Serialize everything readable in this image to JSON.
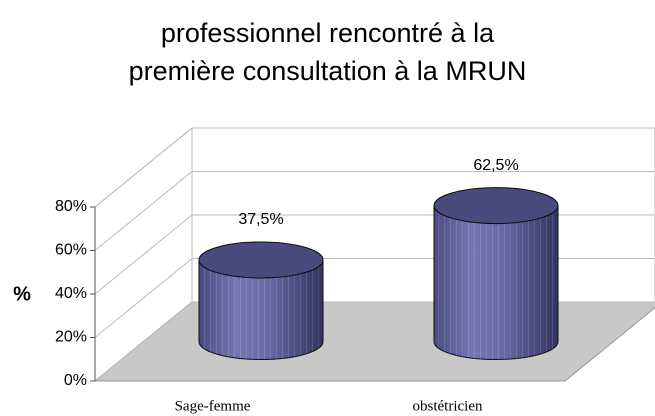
{
  "chart_data": {
    "type": "bar3d",
    "title": "professionnel rencontré à la première consultation à la MRUN",
    "ylabel": "%",
    "categories": [
      "Sage-femme",
      "obstétricien"
    ],
    "values": [
      37.5,
      62.5
    ],
    "value_labels": [
      "37,5%",
      "62,5%"
    ],
    "color": "#5c5c9e",
    "ylim": [
      0,
      80
    ],
    "yticks": [
      {
        "value": 0,
        "label": "0%"
      },
      {
        "value": 20,
        "label": "20%"
      },
      {
        "value": 40,
        "label": "40%"
      },
      {
        "value": 60,
        "label": "60%"
      },
      {
        "value": 80,
        "label": "80%"
      }
    ],
    "grid": true
  }
}
